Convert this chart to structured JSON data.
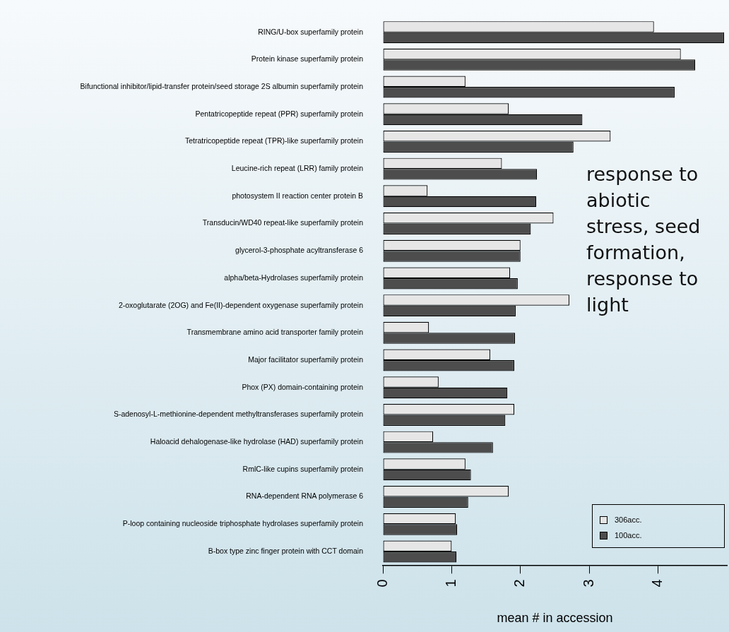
{
  "chart_data": {
    "type": "bar",
    "orientation": "horizontal",
    "categories": [
      "RING/U-box superfamily protein",
      "Protein kinase superfamily protein",
      "Bifunctional inhibitor/lipid-transfer protein/seed storage 2S albumin superfamily protein",
      "Pentatricopeptide repeat (PPR) superfamily protein",
      "Tetratricopeptide repeat (TPR)-like superfamily protein",
      "Leucine-rich repeat (LRR) family protein",
      "photosystem II reaction center protein B",
      "Transducin/WD40 repeat-like superfamily protein",
      "glycerol-3-phosphate acyltransferase 6",
      "alpha/beta-Hydrolases superfamily protein",
      "2-oxoglutarate (2OG) and Fe(II)-dependent oxygenase superfamily protein",
      "Transmembrane amino acid transporter family protein",
      "Major facilitator superfamily protein",
      "Phox (PX) domain-containing protein",
      "S-adenosyl-L-methionine-dependent methyltransferases superfamily protein",
      "Haloacid dehalogenase-like hydrolase (HAD) superfamily protein",
      "RmlC-like cupins superfamily protein",
      "RNA-dependent RNA polymerase 6",
      "P-loop containing nucleoside triphosphate hydrolases superfamily protein",
      "B-box type zinc finger protein with CCT domain"
    ],
    "series": [
      {
        "name": "306acc.",
        "color": "#e6e6e6",
        "values": [
          3.94,
          4.33,
          1.2,
          1.83,
          3.31,
          1.73,
          0.65,
          2.48,
          2.0,
          1.85,
          2.71,
          0.67,
          1.56,
          0.81,
          1.91,
          0.73,
          1.2,
          1.83,
          1.06,
          1.0
        ]
      },
      {
        "name": "100acc.",
        "color": "#4d4d4d",
        "values": [
          4.96,
          4.54,
          4.24,
          2.9,
          2.77,
          2.24,
          2.23,
          2.15,
          2.0,
          1.96,
          1.93,
          1.92,
          1.91,
          1.81,
          1.78,
          1.6,
          1.28,
          1.24,
          1.08,
          1.07
        ]
      }
    ],
    "xlim": [
      0,
      5
    ],
    "xticks": [
      0,
      1,
      2,
      3,
      4
    ],
    "xlabel": "mean # in accession",
    "legend": "bottom right",
    "annotations": [
      "response to abiotic stress, seed formation, response to light"
    ]
  }
}
